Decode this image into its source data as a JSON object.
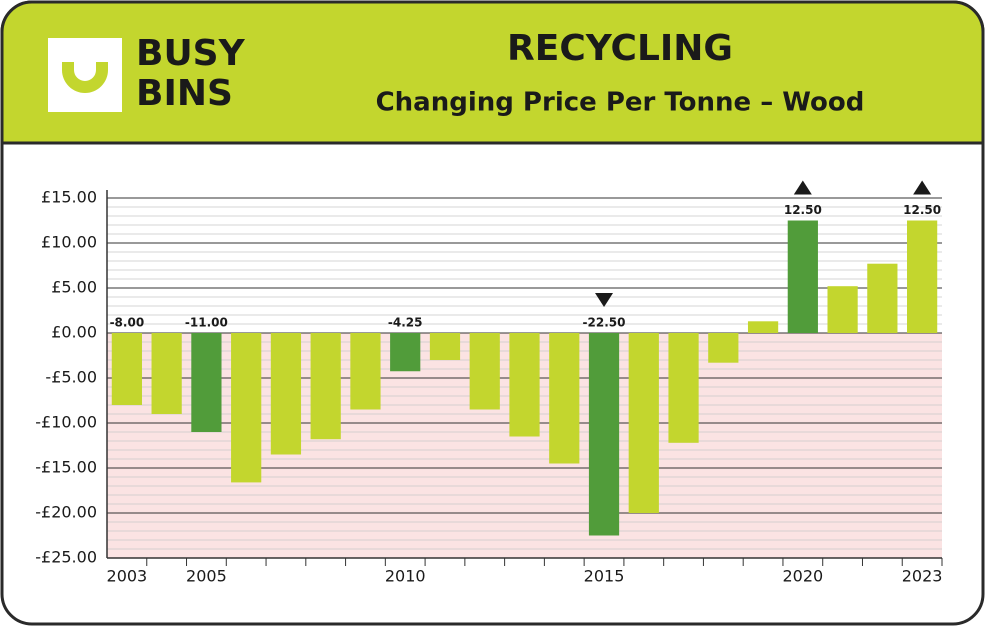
{
  "logo": [
    "BUSY",
    "BINS"
  ],
  "chart_data": {
    "type": "bar",
    "title": "RECYCLING",
    "subtitle": "Changing Price Per Tonne – Wood",
    "categories": [
      "2003",
      null,
      "2005",
      null,
      null,
      null,
      null,
      "2010",
      null,
      null,
      null,
      null,
      "2015",
      null,
      null,
      null,
      null,
      "2020",
      null,
      null,
      "2023"
    ],
    "values": [
      -8.0,
      -9.0,
      -11.0,
      -16.6,
      -13.5,
      -11.8,
      -8.5,
      -4.25,
      -3.0,
      -8.5,
      -11.5,
      -14.5,
      -22.5,
      -20.0,
      -12.2,
      -3.3,
      1.3,
      12.5,
      5.2,
      7.7,
      12.5
    ],
    "value_labels": [
      "-8.00",
      null,
      "-11.00",
      null,
      null,
      null,
      null,
      "-4.25",
      null,
      null,
      null,
      null,
      "-22.50",
      null,
      null,
      null,
      null,
      "12.50",
      null,
      null,
      "12.50"
    ],
    "colors": [
      "#c3d62e",
      "#c3d62e",
      "#519c3a",
      "#c3d62e",
      "#c3d62e",
      "#c3d62e",
      "#c3d62e",
      "#519c3a",
      "#c3d62e",
      "#c3d62e",
      "#c3d62e",
      "#c3d62e",
      "#519c3a",
      "#c3d62e",
      "#c3d62e",
      "#c3d62e",
      "#c3d62e",
      "#519c3a",
      "#c3d62e",
      "#c3d62e",
      "#c3d62e"
    ],
    "ylim": [
      -25,
      15
    ],
    "yticks": [
      {
        "value": 15,
        "label": "£15.00"
      },
      {
        "value": 10,
        "label": "£10.00"
      },
      {
        "value": 5,
        "label": "£5.00"
      },
      {
        "value": 0,
        "label": "£0.00"
      },
      {
        "value": -5,
        "label": "-£5.00"
      },
      {
        "value": -10,
        "label": "-£10.00"
      },
      {
        "value": -15,
        "label": "-£15.00"
      },
      {
        "value": -20,
        "label": "-£20.00"
      },
      {
        "value": -25,
        "label": "-£25.00"
      }
    ],
    "grid": true,
    "negative_fill": "#fbe3e3"
  }
}
